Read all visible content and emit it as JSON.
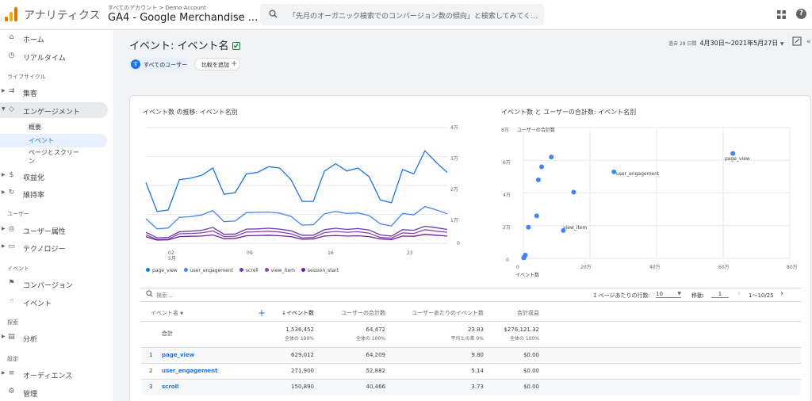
{
  "topbar": {
    "app_name": "アナリティクス",
    "breadcrumb": "すべてのアカウント > Demo Account",
    "property": "GA4 - Google Merchandise ...",
    "search_placeholder": "「先月のオーガニック検索でのコンバージョン数の傾向」と検索してみてく..."
  },
  "sidebar": {
    "items": [
      {
        "label": "ホーム",
        "icon": "home-icon"
      },
      {
        "label": "リアルタイム",
        "icon": "clock-icon"
      },
      {
        "label": "集客",
        "icon": "acquisition-icon"
      },
      {
        "label": "エンゲージメント",
        "icon": "engagement-tag-icon"
      },
      {
        "label": "収益化",
        "icon": "dollar-icon"
      },
      {
        "label": "維持率",
        "icon": "retention-icon"
      },
      {
        "label": "ユーザー属性",
        "icon": "globe-icon"
      },
      {
        "label": "テクノロジー",
        "icon": "devices-icon"
      },
      {
        "label": "コンバージョン",
        "icon": "flag-icon"
      },
      {
        "label": "イベント",
        "icon": "touch-icon"
      },
      {
        "label": "分析",
        "icon": "analysis-icon"
      },
      {
        "label": "オーディエンス",
        "icon": "audience-icon"
      },
      {
        "label": "管理",
        "icon": "gear-icon"
      }
    ],
    "sections": [
      "ライフサイクル",
      "ユーザー",
      "イベント",
      "探索",
      "設定"
    ],
    "subitems": [
      "概要",
      "イベント",
      "ページとスクリー",
      "ン"
    ]
  },
  "header": {
    "title": "イベント: イベント名",
    "date_prefix": "過去 28 日間",
    "date_range": "4月30日～2021年5月27日"
  },
  "chips": {
    "segment": "すべてのユーザー",
    "segment_initial": "す",
    "compare": "比較を追加"
  },
  "line_chart": {
    "title": "イベント数 の推移: イベント名別",
    "y_ticks": [
      "4万",
      "3万",
      "2万",
      "1万",
      "0"
    ],
    "x_ticks": [
      "02",
      "09",
      "16",
      "23"
    ],
    "x_sub": "5月",
    "legend": [
      "page_view",
      "user_engagement",
      "scroll",
      "view_item",
      "session_start"
    ]
  },
  "scatter_chart": {
    "title": "イベント数 と ユーザーの合計数: イベント名別",
    "y_label": "ユーザーの合計数",
    "x_label": "イベント数",
    "y_ticks": [
      "8万",
      "6万",
      "4万",
      "2万",
      "0"
    ],
    "x_ticks": [
      "0",
      "20万",
      "40万",
      "60万",
      "80万"
    ],
    "point_labels": [
      "page_view",
      "user_engagement",
      "view_item"
    ]
  },
  "table_bar": {
    "search_placeholder": "検索...",
    "rows_per_page_label": "1 ページあたりの行数:",
    "rows_per_page": "10",
    "goto_label": "移動:",
    "goto_value": "1",
    "page_info": "1〜10/25"
  },
  "table": {
    "headers": [
      "イベント名",
      "↓イベント数",
      "ユーザーの合計数",
      "ユーザーあたりのイベント数",
      "合計収益"
    ],
    "totals": {
      "label": "合計",
      "values": [
        "1,536,452",
        "64,472",
        "23.83",
        "$276,121.32"
      ],
      "subs": [
        "全体の 100%",
        "全体の 100%",
        "平均との差 0%",
        "全体の 100%"
      ]
    },
    "rows": [
      {
        "idx": "1",
        "name": "page_view",
        "events": "629,012",
        "users": "64,209",
        "per_user": "9.80",
        "revenue": "$0.00"
      },
      {
        "idx": "2",
        "name": "user_engagement",
        "events": "271,900",
        "users": "52,882",
        "per_user": "5.14",
        "revenue": "$0.00"
      },
      {
        "idx": "3",
        "name": "scroll",
        "events": "150,890",
        "users": "40,466",
        "per_user": "3.73",
        "revenue": "$0.00"
      }
    ]
  },
  "chart_data": [
    {
      "type": "line",
      "title": "イベント数 の推移: イベント名別",
      "ylim": [
        0,
        40000
      ],
      "x": [
        "4/30",
        "5/1",
        "5/2",
        "5/3",
        "5/4",
        "5/5",
        "5/6",
        "5/7",
        "5/8",
        "5/9",
        "5/10",
        "5/11",
        "5/12",
        "5/13",
        "5/14",
        "5/15",
        "5/16",
        "5/17",
        "5/18",
        "5/19",
        "5/20",
        "5/21",
        "5/22",
        "5/23",
        "5/24",
        "5/25",
        "5/26",
        "5/27"
      ],
      "series": [
        {
          "name": "page_view",
          "color": "#1a73e8",
          "values": [
            21000,
            11000,
            11500,
            22000,
            22500,
            23500,
            26000,
            17000,
            17500,
            24000,
            24500,
            26500,
            26000,
            22000,
            14500,
            14500,
            25000,
            27500,
            25000,
            26000,
            23000,
            15000,
            14000,
            25500,
            24000,
            32000,
            28000,
            24500
          ]
        },
        {
          "name": "user_engagement",
          "color": "#4285f4",
          "values": [
            8500,
            5000,
            5300,
            9000,
            9200,
            9800,
            11300,
            7500,
            7700,
            10600,
            10700,
            10800,
            10400,
            9300,
            6300,
            6400,
            10200,
            11000,
            10300,
            10500,
            9600,
            6700,
            6000,
            10300,
            9800,
            12700,
            11600,
            10200
          ]
        },
        {
          "name": "scroll",
          "color": "#673ab7",
          "values": [
            3800,
            1900,
            2000,
            4000,
            4200,
            4500,
            5500,
            3100,
            3200,
            4900,
            5000,
            5200,
            4900,
            4300,
            2800,
            2800,
            4700,
            5200,
            4800,
            5100,
            4600,
            2900,
            2500,
            4700,
            4500,
            5900,
            5400,
            4800
          ]
        },
        {
          "name": "view_item",
          "color": "#8e44ad",
          "values": [
            3000,
            1300,
            1400,
            3300,
            3400,
            3600,
            4300,
            2300,
            2400,
            3900,
            4000,
            4200,
            3900,
            3300,
            1900,
            2000,
            3700,
            4100,
            3800,
            4000,
            3500,
            2000,
            1800,
            3600,
            3400,
            4700,
            4200,
            3800
          ]
        },
        {
          "name": "session_start",
          "color": "#6a1b9a",
          "values": [
            2300,
            1100,
            1200,
            2300,
            2400,
            2500,
            2900,
            1600,
            1700,
            2600,
            2700,
            2800,
            2600,
            2300,
            1400,
            1500,
            2500,
            2700,
            2500,
            2600,
            2300,
            1500,
            1300,
            2500,
            2400,
            3100,
            2800,
            2500
          ]
        }
      ]
    },
    {
      "type": "scatter",
      "title": "イベント数 と ユーザーの合計数: イベント名別",
      "xlabel": "イベント数",
      "ylabel": "ユーザーの合計数",
      "xlim": [
        0,
        800000
      ],
      "ylim": [
        0,
        80000
      ],
      "points": [
        {
          "label": "page_view",
          "x": 629012,
          "y": 64209
        },
        {
          "label": "user_engagement",
          "x": 271900,
          "y": 52882
        },
        {
          "label": "view_item",
          "x": 120000,
          "y": 17000
        },
        {
          "x": 150890,
          "y": 40466
        },
        {
          "x": 84000,
          "y": 62000
        },
        {
          "x": 55000,
          "y": 56000
        },
        {
          "x": 45000,
          "y": 48000
        },
        {
          "x": 40000,
          "y": 26000
        },
        {
          "x": 15000,
          "y": 19000
        },
        {
          "x": 6000,
          "y": 2000
        },
        {
          "x": 3000,
          "y": 1000
        },
        {
          "x": 2000,
          "y": 500
        },
        {
          "x": 1000,
          "y": 300
        }
      ]
    }
  ]
}
